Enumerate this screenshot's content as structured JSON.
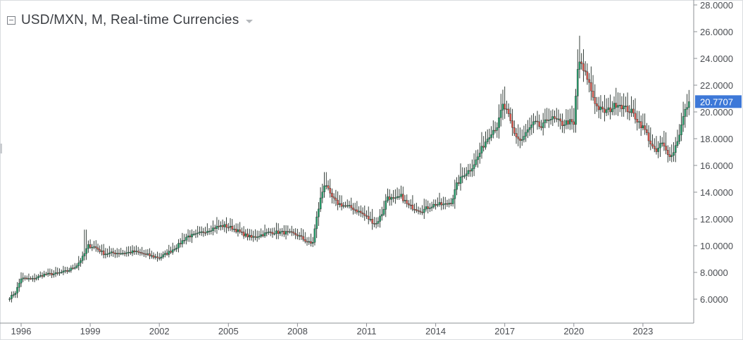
{
  "header": {
    "title": "USD/MXN, M, Real-time Currencies",
    "collapse_icon": "collapse-square-icon",
    "dropdown_icon": "chevron-down-icon"
  },
  "colors": {
    "up": "#27a06d",
    "down": "#e2564d",
    "wick": "#1e2a24",
    "axis": "#8d9096",
    "label_bg": "#3d78d8"
  },
  "last_price": {
    "value": 20.7707,
    "label": "20.7707"
  },
  "chart_data": {
    "type": "candlestick",
    "symbol": "USD/MXN",
    "interval": "M",
    "x_ticks": [
      "1996",
      "1999",
      "2002",
      "2005",
      "2008",
      "2011",
      "2014",
      "2017",
      "2020",
      "2023"
    ],
    "y_ticks": [
      "6.0000",
      "8.0000",
      "10.0000",
      "12.0000",
      "14.0000",
      "16.0000",
      "18.0000",
      "20.0000",
      "22.0000",
      "24.0000",
      "26.0000",
      "28.0000"
    ],
    "ylim": [
      5.2,
      28.2
    ],
    "xlim": [
      1995.5,
      2025.0
    ],
    "grid": false,
    "anchors": [
      [
        1995.5,
        6.1
      ],
      [
        1995.75,
        6.5
      ],
      [
        1996.0,
        7.55
      ],
      [
        1996.5,
        7.5
      ],
      [
        1997.0,
        7.85
      ],
      [
        1997.5,
        7.9
      ],
      [
        1998.0,
        8.1
      ],
      [
        1998.4,
        8.5
      ],
      [
        1998.7,
        9.2
      ],
      [
        1998.9,
        10.0
      ],
      [
        1999.2,
        9.9
      ],
      [
        1999.6,
        9.4
      ],
      [
        2000.0,
        9.45
      ],
      [
        2000.5,
        9.45
      ],
      [
        2000.9,
        9.55
      ],
      [
        2001.3,
        9.4
      ],
      [
        2001.7,
        9.2
      ],
      [
        2002.0,
        9.1
      ],
      [
        2002.5,
        9.6
      ],
      [
        2002.8,
        10.0
      ],
      [
        2003.2,
        10.7
      ],
      [
        2003.6,
        10.8
      ],
      [
        2004.0,
        11.1
      ],
      [
        2004.5,
        11.4
      ],
      [
        2004.8,
        11.5
      ],
      [
        2005.2,
        11.3
      ],
      [
        2005.6,
        10.9
      ],
      [
        2006.0,
        10.6
      ],
      [
        2006.4,
        10.8
      ],
      [
        2006.8,
        11.0
      ],
      [
        2007.2,
        11.0
      ],
      [
        2007.6,
        10.95
      ],
      [
        2008.0,
        10.8
      ],
      [
        2008.4,
        10.3
      ],
      [
        2008.65,
        10.1
      ],
      [
        2008.8,
        11.8
      ],
      [
        2009.0,
        13.5
      ],
      [
        2009.2,
        14.8
      ],
      [
        2009.4,
        13.8
      ],
      [
        2009.7,
        13.2
      ],
      [
        2010.0,
        13.0
      ],
      [
        2010.4,
        12.8
      ],
      [
        2010.8,
        12.4
      ],
      [
        2011.1,
        12.0
      ],
      [
        2011.4,
        11.6
      ],
      [
        2011.7,
        12.5
      ],
      [
        2011.9,
        13.7
      ],
      [
        2012.2,
        13.4
      ],
      [
        2012.5,
        13.7
      ],
      [
        2012.8,
        13.0
      ],
      [
        2013.1,
        12.8
      ],
      [
        2013.4,
        12.6
      ],
      [
        2013.7,
        12.9
      ],
      [
        2014.0,
        13.1
      ],
      [
        2014.4,
        13.05
      ],
      [
        2014.7,
        13.3
      ],
      [
        2014.9,
        14.5
      ],
      [
        2015.2,
        15.3
      ],
      [
        2015.5,
        15.7
      ],
      [
        2015.8,
        16.5
      ],
      [
        2016.1,
        17.6
      ],
      [
        2016.4,
        18.5
      ],
      [
        2016.7,
        19.0
      ],
      [
        2016.9,
        20.5
      ],
      [
        2017.1,
        20.0
      ],
      [
        2017.4,
        18.4
      ],
      [
        2017.7,
        17.8
      ],
      [
        2018.0,
        18.6
      ],
      [
        2018.3,
        19.2
      ],
      [
        2018.6,
        18.8
      ],
      [
        2018.9,
        19.6
      ],
      [
        2019.2,
        19.4
      ],
      [
        2019.5,
        19.1
      ],
      [
        2019.8,
        19.3
      ],
      [
        2020.0,
        19.0
      ],
      [
        2020.2,
        24.0
      ],
      [
        2020.4,
        23.1
      ],
      [
        2020.6,
        22.5
      ],
      [
        2020.8,
        21.3
      ],
      [
        2021.0,
        20.4
      ],
      [
        2021.3,
        20.0
      ],
      [
        2021.6,
        20.2
      ],
      [
        2021.9,
        20.7
      ],
      [
        2022.2,
        20.3
      ],
      [
        2022.5,
        20.0
      ],
      [
        2022.8,
        19.3
      ],
      [
        2023.1,
        18.6
      ],
      [
        2023.4,
        17.4
      ],
      [
        2023.55,
        16.9
      ],
      [
        2023.8,
        17.7
      ],
      [
        2024.0,
        17.1
      ],
      [
        2024.25,
        16.7
      ],
      [
        2024.45,
        17.6
      ],
      [
        2024.6,
        18.5
      ],
      [
        2024.75,
        19.6
      ],
      [
        2024.9,
        20.4
      ],
      [
        2025.0,
        20.77
      ]
    ]
  }
}
